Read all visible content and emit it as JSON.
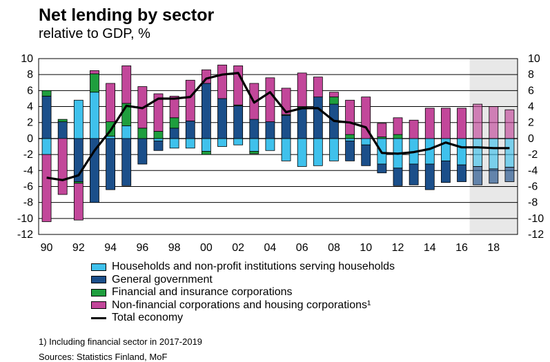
{
  "title": "Net lending by sector",
  "subtitle": "relative to GDP, %",
  "footnote": "1) Including financial sector in 2017-2019",
  "sources": "Sources: Statistics Finland, MoF",
  "chart_data": {
    "type": "bar",
    "x": [
      1990,
      1991,
      1992,
      1993,
      1994,
      1995,
      1996,
      1997,
      1998,
      1999,
      2000,
      2001,
      2002,
      2003,
      2004,
      2005,
      2006,
      2007,
      2008,
      2009,
      2010,
      2011,
      2012,
      2013,
      2014,
      2015,
      2016,
      2017,
      2018,
      2019
    ],
    "x_tick_labels": [
      "90",
      "92",
      "94",
      "96",
      "98",
      "00",
      "02",
      "04",
      "06",
      "08",
      "10",
      "12",
      "14",
      "16",
      "18"
    ],
    "y_tick_labels": [
      "10",
      "8",
      "6",
      "4",
      "2",
      "0",
      "-2",
      "-4",
      "-6",
      "-8",
      "-10",
      "-12"
    ],
    "ylim": [
      -12,
      10
    ],
    "forecast_from": 2017,
    "forecast_shading_color": "#e8e8e8",
    "series": [
      {
        "name": "Households and non-profit institutions serving households",
        "color": "#3fc1ec",
        "values": [
          -2.0,
          0.0,
          4.8,
          5.8,
          0.3,
          1.6,
          0.0,
          -0.3,
          -1.2,
          -1.2,
          -1.6,
          -1.0,
          -0.8,
          -1.6,
          -1.5,
          -2.8,
          -3.5,
          -3.4,
          -2.8,
          -0.3,
          -0.8,
          -3.2,
          -3.7,
          -3.2,
          -3.2,
          -2.8,
          -3.3,
          -3.5,
          -3.8,
          -3.6
        ]
      },
      {
        "name": "General government",
        "color": "#1b4f8a",
        "values": [
          5.3,
          2.1,
          -5.4,
          -8.0,
          -6.4,
          -5.9,
          -3.2,
          -1.2,
          1.3,
          2.2,
          6.9,
          5.0,
          4.1,
          2.4,
          2.1,
          2.9,
          3.9,
          5.2,
          4.3,
          -2.5,
          -2.6,
          -1.1,
          -2.2,
          -2.6,
          -3.2,
          -2.7,
          -2.1,
          -2.3,
          -1.8,
          -1.8
        ]
      },
      {
        "name": "Financial and insurance corporations",
        "color": "#1f9e3e",
        "values": [
          0.7,
          0.3,
          -0.2,
          2.3,
          1.8,
          2.8,
          1.3,
          0.9,
          1.3,
          0.0,
          -0.4,
          0.0,
          0.1,
          -0.3,
          0.0,
          0.1,
          0.1,
          0.0,
          0.9,
          0.5,
          0.0,
          0.2,
          0.5,
          0.0,
          0.0,
          0.0,
          0.0,
          0.0,
          0.0,
          0.0
        ]
      },
      {
        "name": "Non-financial corporations and housing corporations¹",
        "color": "#c2479a",
        "values": [
          -8.4,
          -7.0,
          -4.6,
          0.4,
          4.8,
          4.7,
          5.2,
          4.7,
          2.7,
          5.1,
          1.7,
          4.2,
          4.9,
          4.5,
          5.5,
          3.3,
          4.2,
          2.5,
          0.6,
          4.3,
          5.2,
          1.7,
          2.1,
          2.3,
          3.8,
          3.8,
          3.8,
          4.3,
          4.0,
          3.6
        ]
      },
      {
        "name": "Total economy",
        "color": "#000000",
        "type": "line",
        "values": [
          -4.9,
          -5.2,
          -4.6,
          -1.5,
          1.0,
          4.1,
          3.8,
          5.0,
          5.0,
          5.2,
          7.5,
          8.0,
          8.2,
          4.5,
          5.8,
          3.3,
          3.8,
          3.8,
          2.2,
          2.0,
          1.4,
          -1.8,
          -1.9,
          -1.7,
          -1.3,
          -0.5,
          -1.1,
          -1.1,
          -1.2,
          -1.2
        ]
      }
    ]
  }
}
